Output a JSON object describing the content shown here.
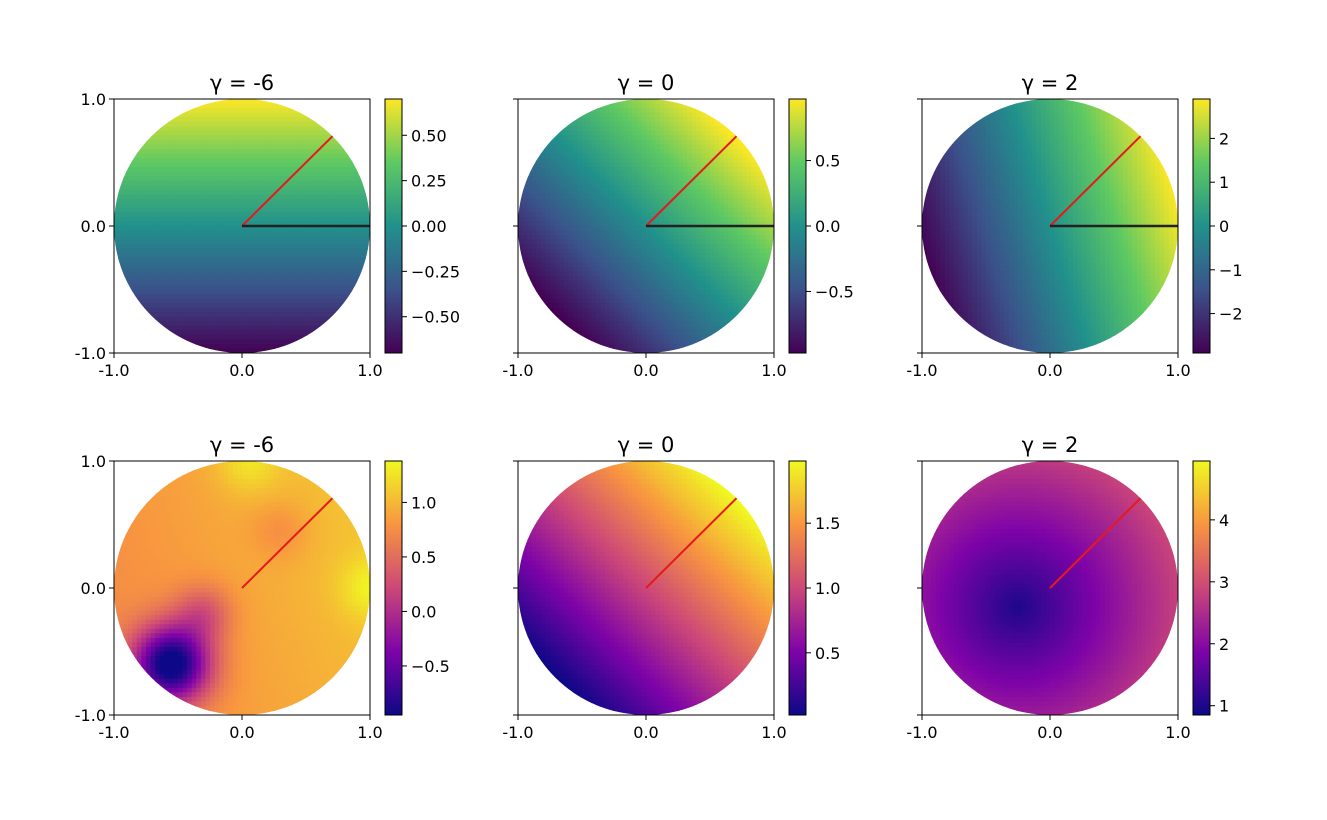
{
  "chart_data": [
    {
      "type": "heatmap",
      "title": "γ = -6",
      "colormap": "viridis",
      "xlim": [
        -1.0,
        1.0
      ],
      "ylim": [
        -1.0,
        1.0
      ],
      "xticks": [
        "-1.0",
        "0.0",
        "1.0"
      ],
      "yticks": [
        "1.0",
        "0.0",
        "-1.0"
      ],
      "domain": "unit disk",
      "overlay_lines": [
        {
          "color": "#e41a1c",
          "from": [
            0,
            0
          ],
          "to": [
            0.707,
            0.707
          ]
        },
        {
          "color": "#222222",
          "from": [
            0,
            0
          ],
          "to": [
            1.0,
            0.0
          ]
        }
      ],
      "colorbar": {
        "min": -0.7,
        "max": 0.7,
        "ticks": [
          0.5,
          0.25,
          0.0,
          -0.25,
          -0.5
        ],
        "tick_labels": [
          "0.50",
          "0.25",
          "0.00",
          "−0.25",
          "−0.50"
        ]
      },
      "field": {
        "form": "linear",
        "cx": 0.0,
        "cy": 0.7
      }
    },
    {
      "type": "heatmap",
      "title": "γ = 0",
      "colormap": "viridis",
      "xlim": [
        -1.0,
        1.0
      ],
      "ylim": [
        -1.0,
        1.0
      ],
      "xticks": [
        "-1.0",
        "0.0",
        "1.0"
      ],
      "yticks": [],
      "domain": "unit disk",
      "overlay_lines": [
        {
          "color": "#e41a1c",
          "from": [
            0,
            0
          ],
          "to": [
            0.707,
            0.707
          ]
        },
        {
          "color": "#222222",
          "from": [
            0,
            0
          ],
          "to": [
            1.0,
            0.0
          ]
        }
      ],
      "colorbar": {
        "min": -0.97,
        "max": 0.97,
        "ticks": [
          0.5,
          0.0,
          -0.5
        ],
        "tick_labels": [
          "0.5",
          "0.0",
          "−0.5"
        ]
      },
      "field": {
        "form": "linear",
        "cx": 0.7,
        "cy": 0.7
      }
    },
    {
      "type": "heatmap",
      "title": "γ = 2",
      "colormap": "viridis",
      "xlim": [
        -1.0,
        1.0
      ],
      "ylim": [
        -1.0,
        1.0
      ],
      "xticks": [
        "-1.0",
        "0.0",
        "1.0"
      ],
      "yticks": [],
      "domain": "unit disk",
      "overlay_lines": [
        {
          "color": "#e41a1c",
          "from": [
            0,
            0
          ],
          "to": [
            0.707,
            0.707
          ]
        },
        {
          "color": "#222222",
          "from": [
            0,
            0
          ],
          "to": [
            1.0,
            0.0
          ]
        }
      ],
      "colorbar": {
        "min": -2.9,
        "max": 2.9,
        "ticks": [
          2,
          1,
          0,
          -1,
          -2
        ],
        "tick_labels": [
          "2",
          "1",
          "0",
          "−1",
          "−2"
        ]
      },
      "field": {
        "form": "linear",
        "cx": 2.75,
        "cy": 0.85
      }
    },
    {
      "type": "heatmap",
      "title": "γ = -6",
      "colormap": "plasma",
      "xlim": [
        -1.0,
        1.0
      ],
      "ylim": [
        -1.0,
        1.0
      ],
      "xticks": [
        "-1.0",
        "0.0",
        "1.0"
      ],
      "yticks": [
        "1.0",
        "0.0",
        "-1.0"
      ],
      "domain": "unit disk",
      "overlay_lines": [
        {
          "color": "#e41a1c",
          "from": [
            0,
            0
          ],
          "to": [
            0.707,
            0.707
          ]
        }
      ],
      "colorbar": {
        "min": -0.95,
        "max": 1.38,
        "ticks": [
          1.0,
          0.5,
          0.0,
          -0.5
        ],
        "tick_labels": [
          "1.0",
          "0.5",
          "0.0",
          "−0.5"
        ]
      },
      "field": {
        "form": "bumpy"
      }
    },
    {
      "type": "heatmap",
      "title": "γ = 0",
      "colormap": "plasma",
      "xlim": [
        -1.0,
        1.0
      ],
      "ylim": [
        -1.0,
        1.0
      ],
      "xticks": [
        "-1.0",
        "0.0",
        "1.0"
      ],
      "yticks": [],
      "domain": "unit disk",
      "overlay_lines": [
        {
          "color": "#e41a1c",
          "from": [
            0,
            0
          ],
          "to": [
            0.707,
            0.707
          ]
        }
      ],
      "colorbar": {
        "min": 0.02,
        "max": 1.98,
        "ticks": [
          1.5,
          1.0,
          0.5
        ],
        "tick_labels": [
          "1.5",
          "1.0",
          "0.5"
        ]
      },
      "field": {
        "form": "linear",
        "cx": 0.7,
        "cy": 0.7,
        "offset": 1.0
      }
    },
    {
      "type": "heatmap",
      "title": "γ = 2",
      "colormap": "plasma",
      "xlim": [
        -1.0,
        1.0
      ],
      "ylim": [
        -1.0,
        1.0
      ],
      "xticks": [
        "-1.0",
        "0.0",
        "1.0"
      ],
      "yticks": [],
      "domain": "unit disk",
      "overlay_lines": [
        {
          "color": "#e41a1c",
          "from": [
            0,
            0
          ],
          "to": [
            0.707,
            0.707
          ]
        }
      ],
      "colorbar": {
        "min": 0.85,
        "max": 4.95,
        "ticks": [
          4,
          3,
          2,
          1
        ],
        "tick_labels": [
          "4",
          "3",
          "2",
          "1"
        ]
      },
      "field": {
        "form": "distance",
        "px": -0.25,
        "py": -0.15
      }
    }
  ]
}
